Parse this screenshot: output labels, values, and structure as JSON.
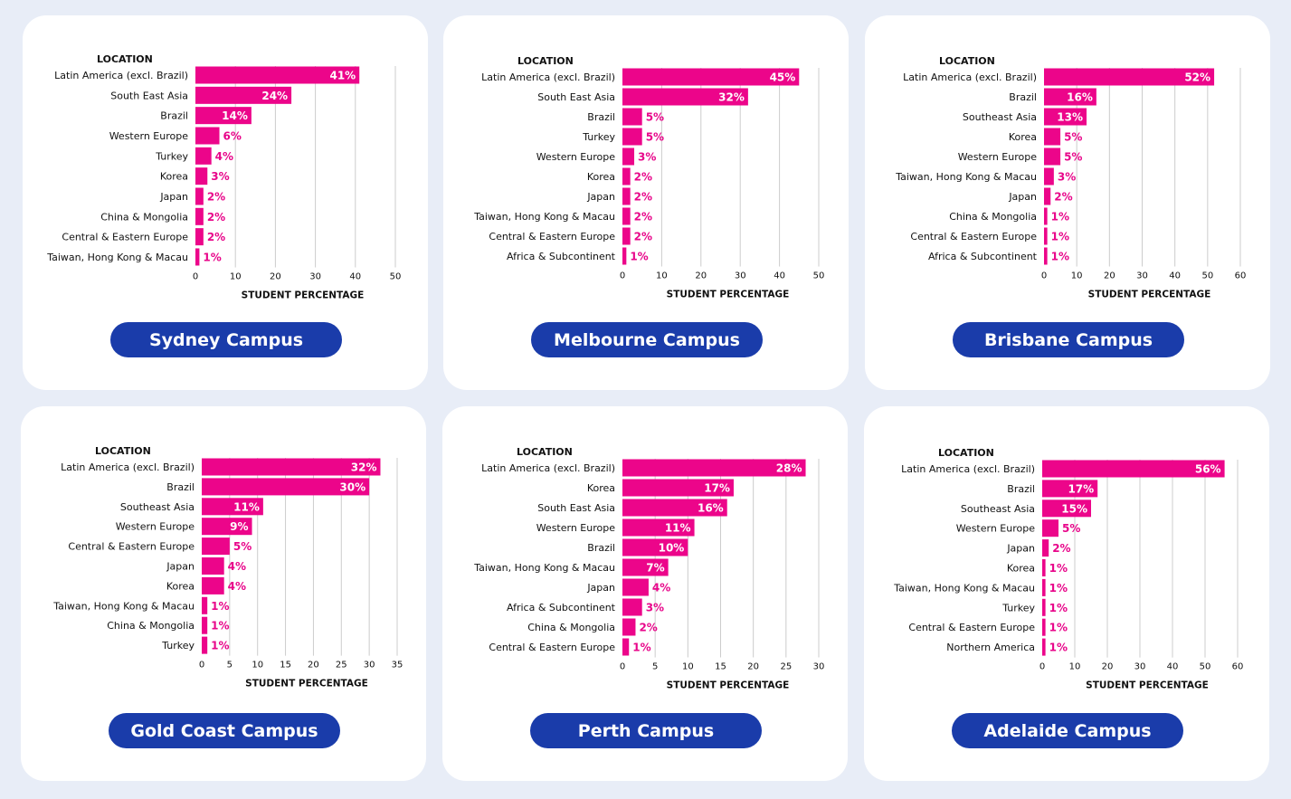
{
  "colors": {
    "bar": "#ec058a",
    "button": "#1a3caa",
    "grid": "#cccccc"
  },
  "chart_data": [
    {
      "type": "bar",
      "orientation": "horizontal",
      "campus": "Sydney Campus",
      "ylabel": "LOCATION",
      "xlabel": "STUDENT PERCENTAGE",
      "xlim": [
        0,
        50
      ],
      "xticks": [
        0,
        10,
        20,
        30,
        40,
        50
      ],
      "grid": true,
      "categories": [
        "Latin America (excl. Brazil)",
        "South East Asia",
        "Brazil",
        "Western Europe",
        "Turkey",
        "Korea",
        "Japan",
        "China & Mongolia",
        "Central & Eastern Europe",
        "Taiwan, Hong Kong & Macau"
      ],
      "values": [
        41,
        24,
        14,
        6,
        4,
        3,
        2,
        2,
        2,
        1
      ],
      "labels": [
        "41%",
        "24%",
        "14%",
        "6%",
        "4%",
        "3%",
        "2%",
        "2%",
        "2%",
        "1%"
      ]
    },
    {
      "type": "bar",
      "orientation": "horizontal",
      "campus": "Melbourne Campus",
      "ylabel": "LOCATION",
      "xlabel": "STUDENT PERCENTAGE",
      "xlim": [
        0,
        50
      ],
      "xticks": [
        0,
        10,
        20,
        30,
        40,
        50
      ],
      "grid": true,
      "categories": [
        "Latin America (excl. Brazil)",
        "South East Asia",
        "Brazil",
        "Turkey",
        "Western Europe",
        "Korea",
        "Japan",
        "Taiwan, Hong Kong & Macau",
        "Central & Eastern Europe",
        "Africa & Subcontinent"
      ],
      "values": [
        45,
        32,
        5,
        5,
        3,
        2,
        2,
        2,
        2,
        1
      ],
      "labels": [
        "45%",
        "32%",
        "5%",
        "5%",
        "3%",
        "2%",
        "2%",
        "2%",
        "2%",
        "1%"
      ]
    },
    {
      "type": "bar",
      "orientation": "horizontal",
      "campus": "Brisbane Campus",
      "ylabel": "LOCATION",
      "xlabel": "STUDENT PERCENTAGE",
      "xlim": [
        0,
        60
      ],
      "xticks": [
        0,
        10,
        20,
        30,
        40,
        50,
        60
      ],
      "grid": true,
      "categories": [
        "Latin America (excl. Brazil)",
        "Brazil",
        "Southeast Asia",
        "Korea",
        "Western Europe",
        "Taiwan, Hong Kong & Macau",
        "Japan",
        "China & Mongolia",
        "Central & Eastern Europe",
        "Africa & Subcontinent"
      ],
      "values": [
        52,
        16,
        13,
        5,
        5,
        3,
        2,
        1,
        1,
        1
      ],
      "labels": [
        "52%",
        "16%",
        "13%",
        "5%",
        "5%",
        "3%",
        "2%",
        "1%",
        "1%",
        "1%"
      ]
    },
    {
      "type": "bar",
      "orientation": "horizontal",
      "campus": "Gold Coast Campus",
      "ylabel": "LOCATION",
      "xlabel": "STUDENT PERCENTAGE",
      "xlim": [
        0,
        35
      ],
      "xticks": [
        0,
        5,
        10,
        15,
        20,
        25,
        30,
        35
      ],
      "grid": true,
      "categories": [
        "Latin America (excl. Brazil)",
        "Brazil",
        "Southeast Asia",
        "Western Europe",
        "Central & Eastern Europe",
        "Japan",
        "Korea",
        "Taiwan, Hong Kong & Macau",
        "China & Mongolia",
        "Turkey"
      ],
      "values": [
        32,
        30,
        11,
        9,
        5,
        4,
        4,
        1,
        1,
        1
      ],
      "labels": [
        "32%",
        "30%",
        "11%",
        "9%",
        "5%",
        "4%",
        "4%",
        "1%",
        "1%",
        "1%"
      ]
    },
    {
      "type": "bar",
      "orientation": "horizontal",
      "campus": "Perth Campus",
      "ylabel": "LOCATION",
      "xlabel": "STUDENT PERCENTAGE",
      "xlim": [
        0,
        30
      ],
      "xticks": [
        0,
        5,
        10,
        15,
        20,
        25,
        30
      ],
      "grid": true,
      "categories": [
        "Latin America (excl. Brazil)",
        "Korea",
        "South East Asia",
        "Western Europe",
        "Brazil",
        "Taiwan, Hong Kong & Macau",
        "Japan",
        "Africa & Subcontinent",
        "China & Mongolia",
        "Central & Eastern Europe"
      ],
      "values": [
        28,
        17,
        16,
        11,
        10,
        7,
        4,
        3,
        2,
        1
      ],
      "labels": [
        "28%",
        "17%",
        "16%",
        "11%",
        "10%",
        "7%",
        "4%",
        "3%",
        "2%",
        "1%"
      ]
    },
    {
      "type": "bar",
      "orientation": "horizontal",
      "campus": "Adelaide Campus",
      "ylabel": "LOCATION",
      "xlabel": "STUDENT PERCENTAGE",
      "xlim": [
        0,
        60
      ],
      "xticks": [
        0,
        10,
        20,
        30,
        40,
        50,
        60
      ],
      "grid": true,
      "categories": [
        "Latin America (excl. Brazil)",
        "Brazil",
        "Southeast Asia",
        "Western Europe",
        "Japan",
        "Korea",
        "Taiwan, Hong Kong & Macau",
        "Turkey",
        "Central & Eastern Europe",
        "Northern America"
      ],
      "values": [
        56,
        17,
        15,
        5,
        2,
        1,
        1,
        1,
        1,
        1
      ],
      "labels": [
        "56%",
        "17%",
        "15%",
        "5%",
        "2%",
        "1%",
        "1%",
        "1%",
        "1%",
        "1%"
      ]
    }
  ]
}
